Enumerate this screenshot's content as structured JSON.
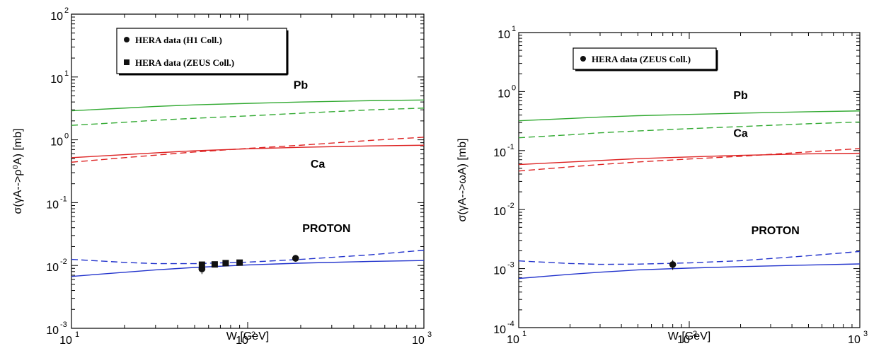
{
  "chart_data": [
    {
      "type": "line",
      "xlabel": "W [GeV]",
      "ylabel": "σ(γA-->ρ⁰A) [mb]",
      "xscale": "log",
      "yscale": "log",
      "xlim": [
        10,
        1000
      ],
      "ylim": [
        0.001,
        100
      ],
      "x_ticks": [
        {
          "base": "10",
          "exp": "1"
        },
        {
          "base": "10",
          "exp": "2"
        },
        {
          "base": "10",
          "exp": "3"
        }
      ],
      "y_ticks": [
        {
          "base": "10",
          "exp": "-3"
        },
        {
          "base": "10",
          "exp": "-2"
        },
        {
          "base": "10",
          "exp": "-1"
        },
        {
          "base": "10",
          "exp": "0"
        },
        {
          "base": "10",
          "exp": "1"
        },
        {
          "base": "10",
          "exp": "2"
        }
      ],
      "legend": {
        "position": "top-left",
        "entries": [
          {
            "label": "HERA data (H1 Coll.)",
            "marker": "circle"
          },
          {
            "label": "HERA data (ZEUS Coll.)",
            "marker": "square"
          }
        ]
      },
      "curve_labels": [
        {
          "text": "Pb",
          "x": 200,
          "y": 6.5
        },
        {
          "text": "Ca",
          "x": 250,
          "y": 0.36
        },
        {
          "text": "PROTON",
          "x": 280,
          "y": 0.034
        }
      ],
      "series": [
        {
          "color": "#33aa33",
          "dash": "solid",
          "x": [
            10,
            20,
            30,
            50,
            100,
            200,
            500,
            1000
          ],
          "y": [
            2.9,
            3.2,
            3.4,
            3.6,
            3.8,
            4.0,
            4.2,
            4.3
          ]
        },
        {
          "color": "#33aa33",
          "dash": "dashed",
          "x": [
            10,
            20,
            30,
            50,
            100,
            200,
            500,
            1000
          ],
          "y": [
            1.7,
            1.9,
            2.05,
            2.2,
            2.4,
            2.65,
            3.0,
            3.2
          ]
        },
        {
          "color": "#dd2222",
          "dash": "solid",
          "x": [
            10,
            20,
            30,
            50,
            100,
            200,
            500,
            1000
          ],
          "y": [
            0.52,
            0.58,
            0.62,
            0.67,
            0.72,
            0.76,
            0.8,
            0.82
          ]
        },
        {
          "color": "#dd2222",
          "dash": "dashed",
          "x": [
            10,
            20,
            30,
            50,
            100,
            200,
            500,
            1000
          ],
          "y": [
            0.44,
            0.52,
            0.57,
            0.64,
            0.73,
            0.82,
            0.98,
            1.1
          ]
        },
        {
          "color": "#2233cc",
          "dash": "solid",
          "x": [
            10,
            20,
            30,
            50,
            100,
            200,
            500,
            1000
          ],
          "y": [
            0.0067,
            0.0078,
            0.0085,
            0.0093,
            0.0102,
            0.0109,
            0.0116,
            0.012
          ]
        },
        {
          "color": "#2233cc",
          "dash": "dashed",
          "x": [
            10,
            20,
            30,
            50,
            100,
            200,
            500,
            1000
          ],
          "y": [
            0.0125,
            0.0112,
            0.0107,
            0.0107,
            0.0113,
            0.0125,
            0.0148,
            0.0175
          ]
        }
      ],
      "points": [
        {
          "marker": "circle",
          "x": 55,
          "y": 0.0088,
          "err_lo": 0.0073,
          "err_hi": 0.0103
        },
        {
          "marker": "square",
          "x": 55,
          "y": 0.0103,
          "err_lo": 0.0092,
          "err_hi": 0.0114
        },
        {
          "marker": "square",
          "x": 65,
          "y": 0.0104,
          "err_lo": 0.0095,
          "err_hi": 0.0113
        },
        {
          "marker": "square",
          "x": 75,
          "y": 0.0109,
          "err_lo": 0.0101,
          "err_hi": 0.0117
        },
        {
          "marker": "square",
          "x": 90,
          "y": 0.0111,
          "err_lo": 0.0103,
          "err_hi": 0.0119
        },
        {
          "marker": "circle",
          "x": 187,
          "y": 0.013,
          "err_lo": 0.0115,
          "err_hi": 0.0145
        }
      ]
    },
    {
      "type": "line",
      "xlabel": "W [GeV]",
      "ylabel": "σ(γA-->ωA) [mb]",
      "xscale": "log",
      "yscale": "log",
      "xlim": [
        10,
        1000
      ],
      "ylim": [
        0.0001,
        10
      ],
      "x_ticks": [
        {
          "base": "10",
          "exp": "1"
        },
        {
          "base": "10",
          "exp": "2"
        },
        {
          "base": "10",
          "exp": "3"
        }
      ],
      "y_ticks": [
        {
          "base": "10",
          "exp": "-4"
        },
        {
          "base": "10",
          "exp": "-3"
        },
        {
          "base": "10",
          "exp": "-2"
        },
        {
          "base": "10",
          "exp": "-1"
        },
        {
          "base": "10",
          "exp": "0"
        },
        {
          "base": "10",
          "exp": "1"
        }
      ],
      "legend": {
        "position": "top-left",
        "entries": [
          {
            "label": "HERA data (ZEUS Coll.)",
            "marker": "circle"
          }
        ]
      },
      "curve_labels": [
        {
          "text": "Pb",
          "x": 200,
          "y": 0.75
        },
        {
          "text": "Ca",
          "x": 200,
          "y": 0.17
        },
        {
          "text": "PROTON",
          "x": 320,
          "y": 0.0038
        }
      ],
      "series": [
        {
          "color": "#33aa33",
          "dash": "solid",
          "x": [
            10,
            20,
            30,
            50,
            100,
            200,
            500,
            1000
          ],
          "y": [
            0.32,
            0.35,
            0.37,
            0.39,
            0.41,
            0.43,
            0.455,
            0.47
          ]
        },
        {
          "color": "#33aa33",
          "dash": "dashed",
          "x": [
            10,
            20,
            30,
            50,
            100,
            200,
            500,
            1000
          ],
          "y": [
            0.165,
            0.185,
            0.2,
            0.215,
            0.235,
            0.255,
            0.285,
            0.305
          ]
        },
        {
          "color": "#dd2222",
          "dash": "solid",
          "x": [
            10,
            20,
            30,
            50,
            100,
            200,
            500,
            1000
          ],
          "y": [
            0.058,
            0.064,
            0.068,
            0.073,
            0.078,
            0.083,
            0.088,
            0.09
          ]
        },
        {
          "color": "#dd2222",
          "dash": "dashed",
          "x": [
            10,
            20,
            30,
            50,
            100,
            200,
            500,
            1000
          ],
          "y": [
            0.045,
            0.053,
            0.058,
            0.064,
            0.072,
            0.08,
            0.095,
            0.108
          ]
        },
        {
          "color": "#2233cc",
          "dash": "solid",
          "x": [
            10,
            20,
            30,
            50,
            100,
            200,
            500,
            1000
          ],
          "y": [
            0.00068,
            0.0008,
            0.00087,
            0.00095,
            0.00102,
            0.00108,
            0.00115,
            0.0012
          ]
        },
        {
          "color": "#2233cc",
          "dash": "dashed",
          "x": [
            10,
            20,
            30,
            50,
            100,
            200,
            500,
            1000
          ],
          "y": [
            0.00135,
            0.00122,
            0.00118,
            0.00119,
            0.00125,
            0.00136,
            0.00165,
            0.00195
          ]
        }
      ],
      "points": [
        {
          "marker": "circle",
          "x": 80,
          "y": 0.00117,
          "err_lo": 0.00095,
          "err_hi": 0.0014
        }
      ]
    }
  ]
}
